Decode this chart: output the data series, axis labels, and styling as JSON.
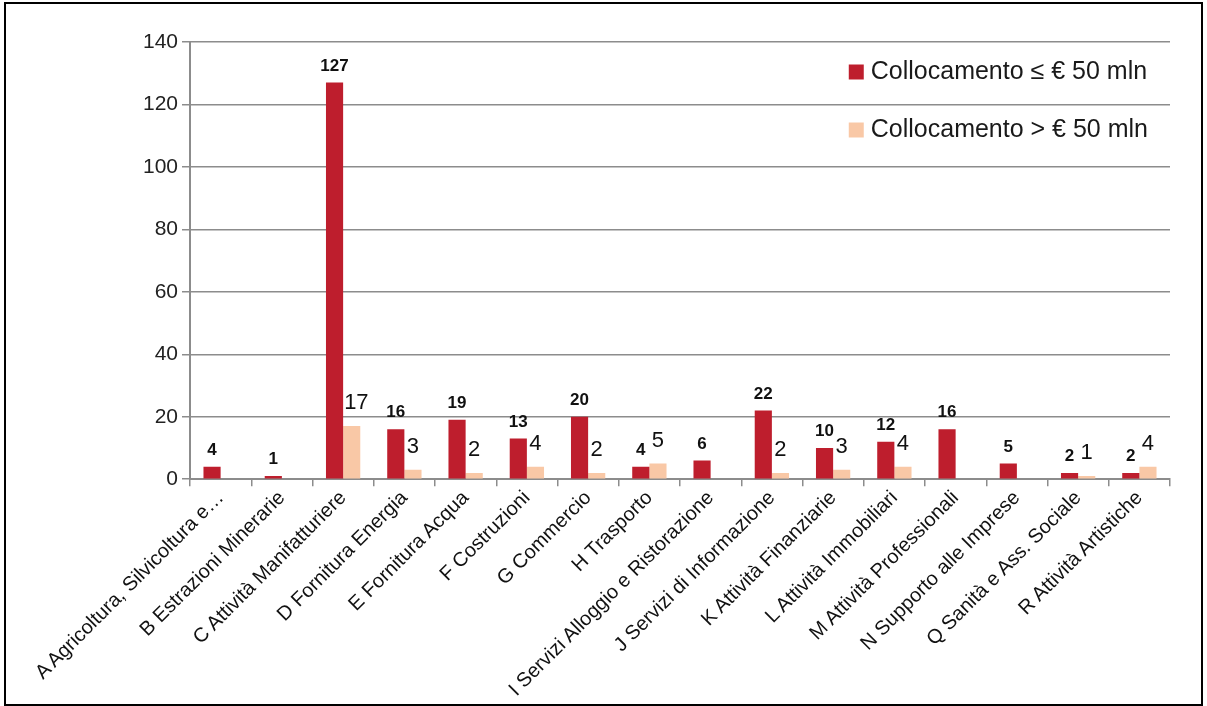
{
  "chart_data": {
    "type": "bar",
    "categories": [
      "A Agricoltura, Silvicoltura e…",
      "B Estrazioni Minerarie",
      "C Attività Manifatturiere",
      "D Fornitura Energia",
      "E Fornitura Acqua",
      "F Costruzioni",
      "G Commercio",
      "H Trasporto",
      "I Servizi Alloggio e Ristorazione",
      "J Servizi di Informazione",
      "K Attività Finanziarie",
      "L Attività Immobiliari",
      "M Attività Professionali",
      "N Supporto alle Imprese",
      "Q Sanità e Ass. Sociale",
      "R Attività Artistiche"
    ],
    "series": [
      {
        "name": "Collocamento ≤ € 50 mln",
        "color": "#be1e2d",
        "values": [
          4,
          1,
          127,
          16,
          19,
          13,
          20,
          4,
          6,
          22,
          10,
          12,
          16,
          5,
          2,
          2
        ]
      },
      {
        "name": "Collocamento > € 50 mln",
        "color": "#f9c8a6",
        "values": [
          null,
          null,
          17,
          3,
          2,
          4,
          2,
          5,
          null,
          2,
          3,
          4,
          null,
          null,
          1,
          4
        ]
      }
    ],
    "ylim": [
      0,
      140
    ],
    "yticks": [
      0,
      20,
      40,
      60,
      80,
      100,
      120,
      140
    ],
    "grid": "y",
    "legend": "top right",
    "data_labels": true
  }
}
